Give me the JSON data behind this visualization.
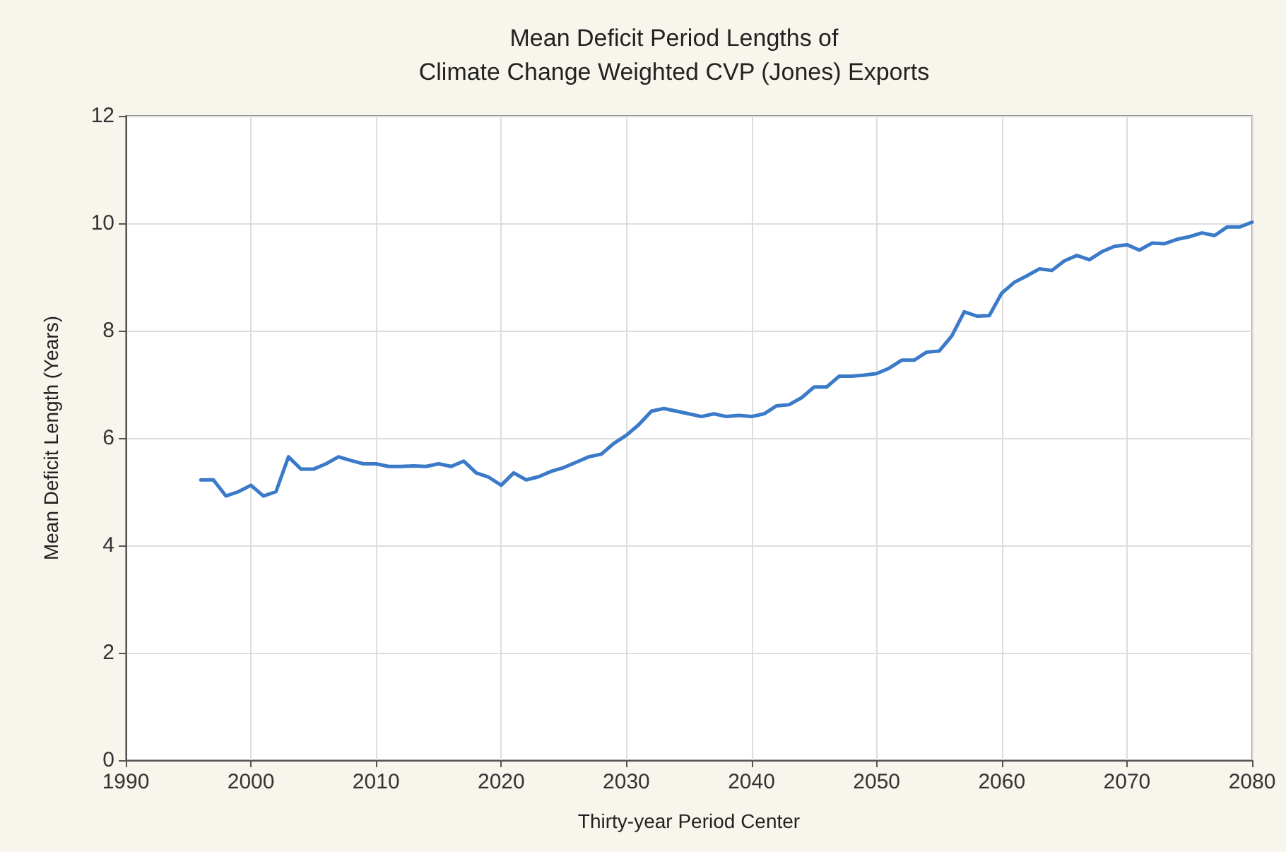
{
  "chart_data": {
    "type": "line",
    "title": "Mean Deficit Period Lengths of\nClimate Change Weighted CVP (Jones) Exports",
    "xlabel": "Thirty-year Period Center",
    "ylabel": "Mean Deficit Length (Years)",
    "x": [
      1996,
      1997,
      1998,
      1999,
      2000,
      2001,
      2002,
      2003,
      2004,
      2005,
      2006,
      2007,
      2008,
      2009,
      2010,
      2011,
      2012,
      2013,
      2014,
      2015,
      2016,
      2017,
      2018,
      2019,
      2020,
      2021,
      2022,
      2023,
      2024,
      2025,
      2026,
      2027,
      2028,
      2029,
      2030,
      2031,
      2032,
      2033,
      2034,
      2035,
      2036,
      2037,
      2038,
      2039,
      2040,
      2041,
      2042,
      2043,
      2044,
      2045,
      2046,
      2047,
      2048,
      2049,
      2050,
      2051,
      2052,
      2053,
      2054,
      2055,
      2056,
      2057,
      2058,
      2059,
      2060,
      2061,
      2062,
      2063,
      2064,
      2065,
      2066,
      2067,
      2068,
      2069,
      2070,
      2071,
      2072,
      2073,
      2074,
      2075,
      2076,
      2077,
      2078,
      2079,
      2080
    ],
    "series": [
      {
        "color": "#3a7ac8",
        "values": [
          5.22,
          5.22,
          4.92,
          5.0,
          5.12,
          4.92,
          5.0,
          5.65,
          5.42,
          5.42,
          5.52,
          5.65,
          5.58,
          5.52,
          5.52,
          5.47,
          5.47,
          5.48,
          5.47,
          5.52,
          5.47,
          5.57,
          5.35,
          5.27,
          5.12,
          5.35,
          5.22,
          5.28,
          5.38,
          5.45,
          5.55,
          5.65,
          5.7,
          5.9,
          6.05,
          6.25,
          6.5,
          6.55,
          6.5,
          6.45,
          6.4,
          6.45,
          6.4,
          6.42,
          6.4,
          6.45,
          6.6,
          6.62,
          6.75,
          6.95,
          6.95,
          7.15,
          7.15,
          7.17,
          7.2,
          7.3,
          7.45,
          7.45,
          7.6,
          7.62,
          7.9,
          8.35,
          8.27,
          8.28,
          8.7,
          8.9,
          9.02,
          9.15,
          9.12,
          9.3,
          9.4,
          9.32,
          9.47,
          9.57,
          9.6,
          9.5,
          9.63,
          9.62,
          9.7,
          9.75,
          9.82,
          9.77,
          9.93,
          9.93,
          10.02
        ]
      }
    ],
    "xlim": [
      1990,
      2080
    ],
    "xticks": [
      1990,
      2000,
      2010,
      2020,
      2030,
      2040,
      2050,
      2060,
      2070,
      2080
    ],
    "ylim": [
      0,
      12
    ],
    "yticks": [
      0,
      2,
      4,
      6,
      8,
      10,
      12
    ],
    "grid": true,
    "marker": "none",
    "line_style": "solid"
  }
}
